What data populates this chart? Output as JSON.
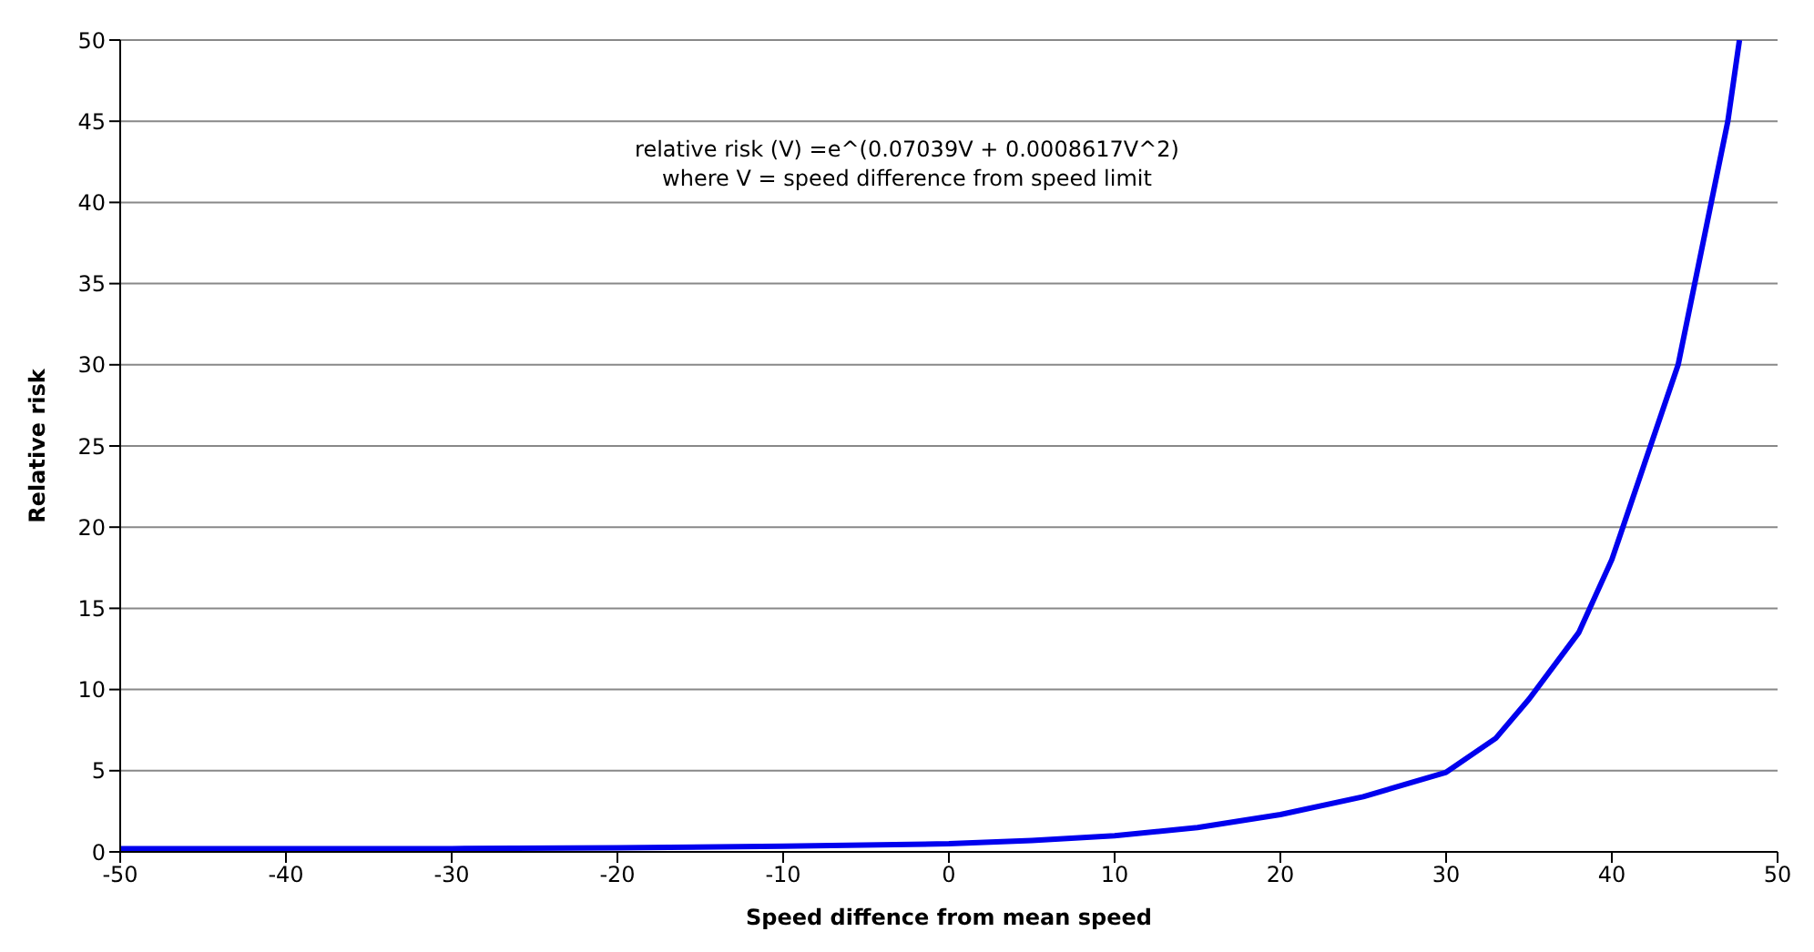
{
  "chart_data": {
    "type": "line",
    "xlabel": "Speed diffence from mean speed",
    "ylabel": "Relative risk",
    "annotations": [
      "relative risk (V) =e^(0.07039V + 0.0008617V^2)",
      "where V = speed difference from speed limit"
    ],
    "x": [
      -50,
      -40,
      -30,
      -20,
      -10,
      0,
      5,
      10,
      15,
      20,
      25,
      30,
      33,
      35,
      38,
      40,
      42,
      44,
      45,
      46,
      47,
      47.7
    ],
    "series": [
      {
        "color": "#0000ee",
        "values": [
          0.2,
          0.2,
          0.2,
          0.25,
          0.35,
          0.5,
          0.7,
          1.0,
          1.5,
          2.3,
          3.4,
          4.9,
          7,
          9.4,
          13.5,
          18,
          24,
          30,
          35,
          40,
          45,
          50
        ]
      }
    ],
    "xlim": [
      -50,
      50
    ],
    "xticks": [
      -50,
      -40,
      -30,
      -20,
      -10,
      0,
      10,
      20,
      30,
      40,
      50
    ],
    "ylim": [
      0,
      50
    ],
    "yticks": [
      0,
      5,
      10,
      15,
      20,
      25,
      30,
      35,
      40,
      45,
      50
    ],
    "grid": "y",
    "legend": false,
    "marker": "none",
    "line_style": "solid"
  }
}
